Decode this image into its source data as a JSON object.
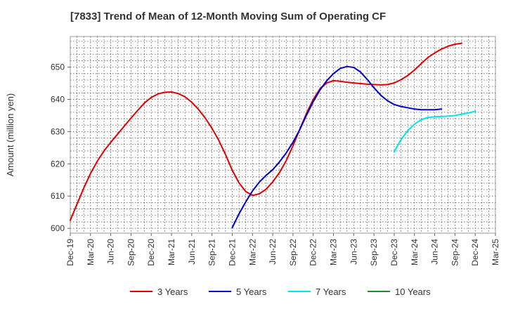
{
  "chart_data": {
    "type": "line",
    "title": "[7833]  Trend of Mean of 12-Month Moving Sum of Operating CF",
    "xlabel": "",
    "ylabel": "Amount (million yen)",
    "ylim": [
      598.5,
      659.5
    ],
    "yticks": [
      600,
      610,
      620,
      630,
      640,
      650
    ],
    "x_start": "Dec-19",
    "x_end": "Mar-25",
    "x_ticks": [
      "Dec-19",
      "Mar-20",
      "Jun-20",
      "Sep-20",
      "Dec-20",
      "Mar-21",
      "Jun-21",
      "Sep-21",
      "Dec-21",
      "Mar-22",
      "Jun-22",
      "Sep-22",
      "Dec-22",
      "Mar-23",
      "Jun-23",
      "Sep-23",
      "Dec-23",
      "Mar-24",
      "Jun-24",
      "Sep-24",
      "Dec-24",
      "Mar-25"
    ],
    "grid": true,
    "legend_position": "bottom",
    "series": [
      {
        "name": "3 Years",
        "color": "#e00000",
        "start": "Dec-19",
        "values": [
          602.5,
          607.5,
          612.5,
          617,
          620.8,
          624,
          626.7,
          629.2,
          631.7,
          634.2,
          636.6,
          638.9,
          640.6,
          641.7,
          642.2,
          642.3,
          641.8,
          640.8,
          639.1,
          636.9,
          634.2,
          631,
          627.3,
          622.9,
          618,
          614.1,
          611.4,
          610.2,
          610.7,
          612.1,
          614.4,
          617.3,
          621,
          625.6,
          630.7,
          635.7,
          640,
          643.3,
          645.1,
          645.8,
          645.6,
          645.3,
          645.1,
          644.9,
          644.7,
          644.6,
          644.5,
          644.6,
          645.1,
          646.1,
          647.4,
          649.1,
          651.1,
          653,
          654.4,
          655.6,
          656.5,
          657.1,
          657.4
        ]
      },
      {
        "name": "5 Years",
        "color": "#0000cc",
        "start": "Dec-21",
        "values": [
          600.2,
          604.5,
          608.2,
          611.6,
          614.3,
          616.4,
          618.2,
          620.6,
          623.4,
          626.7,
          630.6,
          635.1,
          639.3,
          642.9,
          645.8,
          648,
          649.6,
          650.2,
          649.9,
          648.5,
          646.2,
          643.6,
          641.3,
          639.6,
          638.4,
          637.8,
          637.4,
          637,
          636.8,
          636.8,
          636.8,
          637
        ]
      },
      {
        "name": "7 Years",
        "color": "#00e5e5",
        "start": "Dec-23",
        "values": [
          623.7,
          627.5,
          630.3,
          632.3,
          633.7,
          634.4,
          634.6,
          634.7,
          634.8,
          635,
          635.4,
          635.8,
          636.3
        ]
      },
      {
        "name": "10 Years",
        "color": "#228b22",
        "start": "Dec-24",
        "values": []
      }
    ]
  }
}
